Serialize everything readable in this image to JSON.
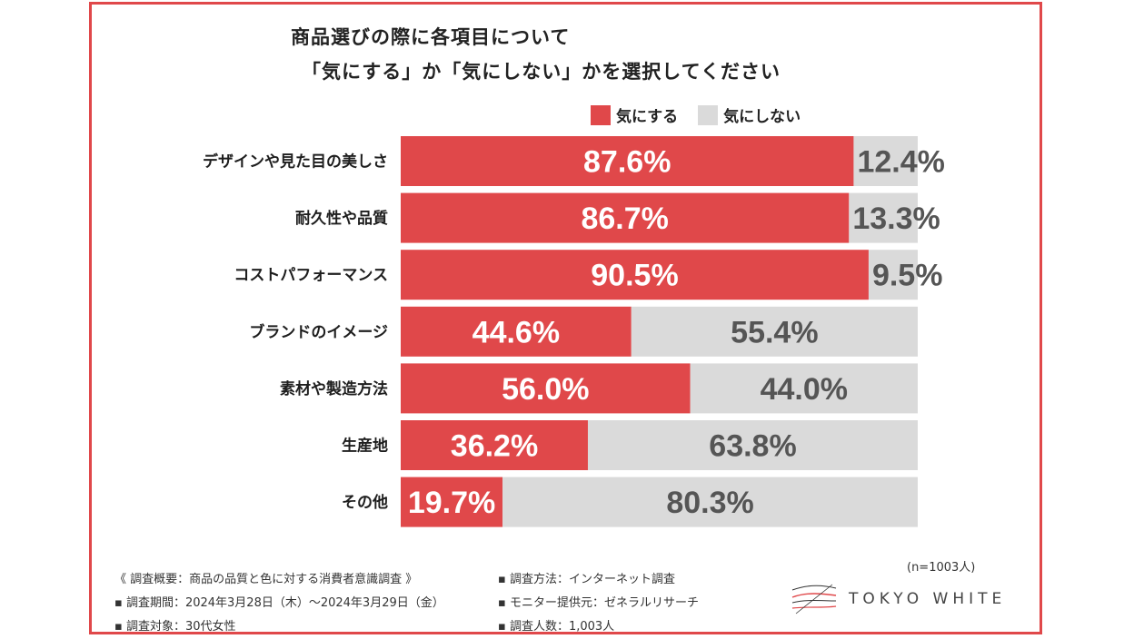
{
  "title": {
    "line1": "商品選びの際に各項目について",
    "line2": "「気にする」か「気にしない」かを選択してください"
  },
  "colors": {
    "accent": "#e0484a",
    "neutral": "#dadada",
    "frame": "#e0484a"
  },
  "chart_data": {
    "type": "bar",
    "orientation": "horizontal",
    "stacked": true,
    "categories": [
      "デザインや見た目の美しさ",
      "耐久性や品質",
      "コストパフォーマンス",
      "ブランドのイメージ",
      "素材や製造方法",
      "生産地",
      "その他"
    ],
    "series": [
      {
        "name": "気にする",
        "values": [
          87.6,
          86.7,
          90.5,
          44.6,
          56.0,
          36.2,
          19.7
        ],
        "labels": [
          "87.6%",
          "86.7%",
          "90.5%",
          "44.6%",
          "56.0%",
          "36.2%",
          "19.7%"
        ]
      },
      {
        "name": "気にしない",
        "values": [
          12.4,
          13.3,
          9.5,
          55.4,
          44.0,
          63.8,
          80.3
        ],
        "labels": [
          "12.4%",
          "13.3%",
          "9.5%",
          "55.4%",
          "44.0%",
          "63.8%",
          "80.3%"
        ]
      }
    ],
    "xlim": [
      0,
      100
    ],
    "legend": "top-right"
  },
  "footer": {
    "left": [
      "《 調査概要：商品の品質と色に対する消費者意識調査 》",
      "▪ 調査期間：2024年3月28日（木）〜2024年3月29日（金）",
      "▪ 調査対象：30代女性"
    ],
    "right": [
      "▪ 調査方法：インターネット調査",
      "▪ モニター提供元：ゼネラルリサーチ",
      "▪ 調査人数：1,003人"
    ],
    "n": "(n=1003人)",
    "brand": "TOKYO WHITE"
  }
}
